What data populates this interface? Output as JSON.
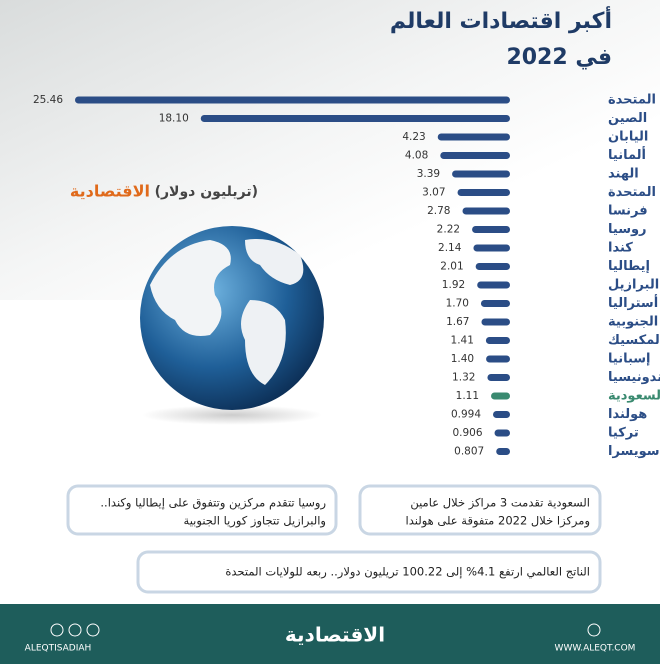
{
  "chart_data": {
    "type": "bar",
    "orientation": "horizontal",
    "title": "أكبر اقتصادات العالم",
    "subtitle": "في 2022",
    "unit_label": "(تريليون دولار)",
    "brand": "الاقتصادية",
    "categories": [
      "الولايات المتحدة",
      "الصين",
      "اليابان",
      "ألمانيا",
      "الهند",
      "المملكة المتحدة",
      "فرنسا",
      "روسيا",
      "كندا",
      "إيطاليا",
      "البرازيل",
      "أستراليا",
      "كوريا الجنوبية",
      "المكسيك",
      "إسبانيا",
      "إندونيسيا",
      "السعودية",
      "هولندا",
      "تركيا",
      "سويسرا"
    ],
    "values": [
      25.46,
      18.1,
      4.23,
      4.08,
      3.39,
      3.07,
      2.78,
      2.22,
      2.14,
      2.01,
      1.92,
      1.7,
      1.67,
      1.41,
      1.4,
      1.32,
      1.11,
      0.994,
      0.906,
      0.807
    ],
    "value_labels": [
      "25.46",
      "18.10",
      "4.23",
      "4.08",
      "3.39",
      "3.07",
      "2.78",
      "2.22",
      "2.14",
      "2.01",
      "1.92",
      "1.70",
      "1.67",
      "1.41",
      "1.40",
      "1.32",
      "1.11",
      "0.994",
      "0.906",
      "0.807"
    ],
    "color": "#2b4d86",
    "highlight": {
      "index": 16,
      "color": "#3a8a70"
    },
    "notes": [
      [
        "السعودية تقدمت 3 مراكز خلال عامين",
        "ومركزا خلال 2022 متفوقة على هولندا"
      ],
      [
        "روسيا تتقدم مركزين وتتفوق على إيطاليا وكندا..",
        "والبرازيل تتجاوز كوريا الجنوبية"
      ],
      [
        "الناتج العالمي ارتفع 4.1% إلى 100.22 تريليون دولار.. ربعه للولايات المتحدة"
      ]
    ],
    "footer": {
      "handle": "ALEQTISADIAH",
      "website": "WWW.ALEQT.COM",
      "logo": "الاقتصادية"
    }
  }
}
